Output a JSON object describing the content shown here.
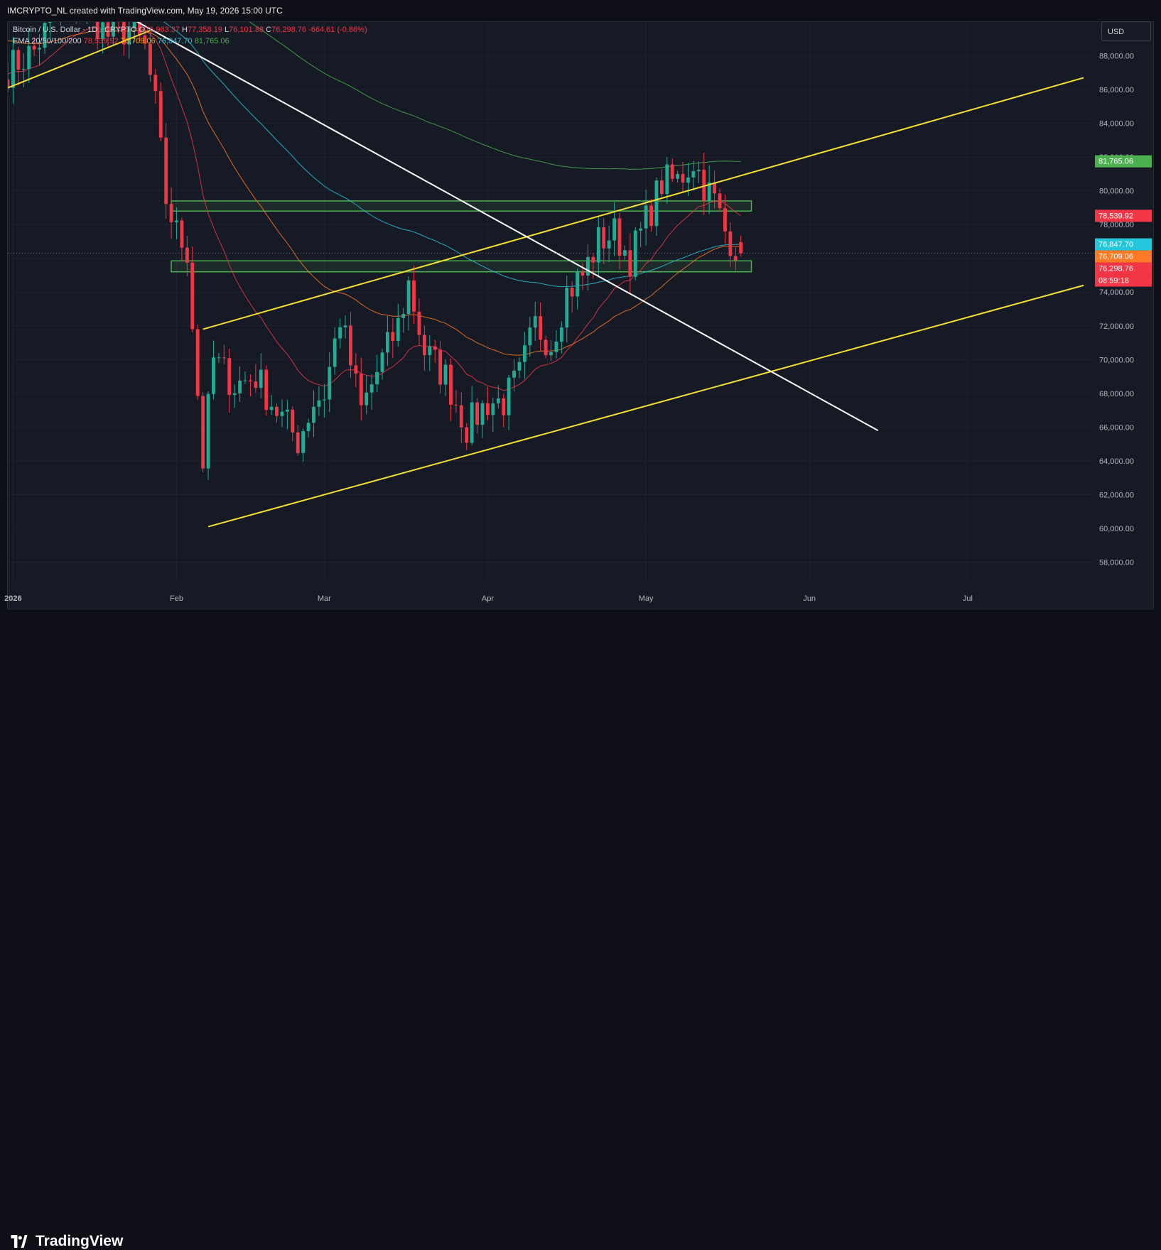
{
  "header": {
    "attribution": "IMCRYPTO_NL created with TradingView.com, May 19, 2026 15:00 UTC"
  },
  "legend": {
    "symbol": "Bitcoin / U.S. Dollar · 1D · CRYPTO",
    "o_label": "O",
    "o": "76,963.37",
    "h_label": "H",
    "h": "77,358.19",
    "l_label": "L",
    "l": "76,101.88",
    "c_label": "C",
    "c": "76,298.76",
    "change": "-664.61 (-0.86%)",
    "ema_label": "EMA 20/50/100/200",
    "ema20": "78,539.92",
    "ema50": "76,709.06",
    "ema100": "76,847.70",
    "ema200": "81,765.06"
  },
  "currency_button": "USD",
  "brand": "TradingView",
  "colors": {
    "up": "#22ab94",
    "down": "#f23645",
    "ema20": "#f23645",
    "ema50": "#ff7a26",
    "ema100": "#26c6da",
    "ema200": "#4caf50",
    "trend": "#f5e02f",
    "zone": "#4caf50"
  },
  "chart_data": {
    "type": "candlestick",
    "interval": "1D",
    "ylim": [
      56800,
      90000
    ],
    "xlim": [
      "2025-12-31",
      "2026-07-25"
    ],
    "x_ticks": [
      "2026",
      "Feb",
      "Mar",
      "Apr",
      "May",
      "Jun",
      "Jul"
    ],
    "x_tick_dates": [
      "2026-01-01",
      "2026-02-01",
      "2026-03-01",
      "2026-04-01",
      "2026-05-01",
      "2026-06-01",
      "2026-07-01"
    ],
    "y_ticks": [
      58000,
      60000,
      62000,
      64000,
      66000,
      68000,
      70000,
      72000,
      74000,
      76000,
      78000,
      80000,
      82000,
      84000,
      86000,
      88000
    ],
    "y_tick_labels": [
      "58,000.00",
      "60,000.00",
      "62,000.00",
      "64,000.00",
      "66,000.00",
      "68,000.00",
      "70,000.00",
      "72,000.00",
      "74,000.00",
      "76,000.00",
      "78,000.00",
      "80,000.00",
      "82,000.00",
      "84,000.00",
      "86,000.00",
      "88,000.00"
    ],
    "close_anchors": [
      [
        "2025-12-31",
        87200
      ],
      [
        "2026-01-05",
        88300
      ],
      [
        "2026-01-09",
        90500
      ],
      [
        "2026-01-13",
        91500
      ],
      [
        "2026-01-19",
        89200
      ],
      [
        "2026-01-23",
        89600
      ],
      [
        "2026-01-26",
        88400
      ],
      [
        "2026-01-28",
        85000
      ],
      [
        "2026-01-30",
        79500
      ],
      [
        "2026-02-01",
        77500
      ],
      [
        "2026-02-03",
        76500
      ],
      [
        "2026-02-05",
        68000
      ],
      [
        "2026-02-06",
        64000
      ],
      [
        "2026-02-08",
        70000
      ],
      [
        "2026-02-12",
        68500
      ],
      [
        "2026-02-16",
        69000
      ],
      [
        "2026-02-20",
        67000
      ],
      [
        "2026-02-24",
        65200
      ],
      [
        "2026-02-27",
        67500
      ],
      [
        "2026-03-01",
        68000
      ],
      [
        "2026-03-04",
        72500
      ],
      [
        "2026-03-08",
        67000
      ],
      [
        "2026-03-12",
        70000
      ],
      [
        "2026-03-15",
        72000
      ],
      [
        "2026-03-17",
        74500
      ],
      [
        "2026-03-20",
        70500
      ],
      [
        "2026-03-24",
        69000
      ],
      [
        "2026-03-28",
        66000
      ],
      [
        "2026-04-01",
        67500
      ],
      [
        "2026-04-04",
        67500
      ],
      [
        "2026-04-07",
        69000
      ],
      [
        "2026-04-10",
        72000
      ],
      [
        "2026-04-13",
        71000
      ],
      [
        "2026-04-16",
        74000
      ],
      [
        "2026-04-19",
        75000
      ],
      [
        "2026-04-22",
        77000
      ],
      [
        "2026-04-25",
        77500
      ],
      [
        "2026-04-28",
        76000
      ],
      [
        "2026-05-01",
        78200
      ],
      [
        "2026-05-04",
        80500
      ],
      [
        "2026-05-07",
        80600
      ],
      [
        "2026-05-10",
        81800
      ],
      [
        "2026-05-12",
        80400
      ],
      [
        "2026-05-14",
        79400
      ],
      [
        "2026-05-16",
        77600
      ],
      [
        "2026-05-19",
        76298.76
      ]
    ],
    "last_candle": {
      "date": "2026-05-19",
      "open": 76963.37,
      "high": 77358.19,
      "low": 76101.88,
      "close": 76298.76
    },
    "emas": [
      {
        "name": "EMA 20",
        "period": 20,
        "last": 78539.92
      },
      {
        "name": "EMA 50",
        "period": 50,
        "last": 76709.06
      },
      {
        "name": "EMA 100",
        "period": 100,
        "last": 76847.7
      },
      {
        "name": "EMA 200",
        "period": 200,
        "last": 81765.06
      }
    ],
    "trendlines": [
      {
        "name": "upper-channel-line",
        "color": "#f5e02f",
        "from": [
          "2026-02-06",
          71800
        ],
        "to": [
          "2026-07-23",
          86700
        ]
      },
      {
        "name": "lower-channel-line",
        "color": "#f5e02f",
        "from": [
          "2026-02-07",
          60100
        ],
        "to": [
          "2026-07-23",
          74400
        ]
      },
      {
        "name": "old-support-line",
        "color": "#f5e02f",
        "from": [
          "2025-12-31",
          86100
        ],
        "to": [
          "2026-01-27",
          89500
        ]
      },
      {
        "name": "descending-resistance-line",
        "color": "#ffffff",
        "from": [
          "2026-01-13",
          92000
        ],
        "to": [
          "2026-06-14",
          65800
        ]
      }
    ],
    "zones": [
      {
        "name": "upper-resistance-zone",
        "from": "2026-01-31",
        "to": "2026-05-21",
        "low": 78800,
        "high": 79400
      },
      {
        "name": "lower-support-zone",
        "from": "2026-01-31",
        "to": "2026-05-21",
        "low": 75200,
        "high": 75850
      }
    ],
    "price_labels": [
      {
        "label": "EMA 200",
        "value": "81,765.06",
        "color": "#4caf50"
      },
      {
        "label": "EMA 20",
        "value": "78,539.92",
        "color": "#f23645"
      },
      {
        "label": "EMA 100",
        "value": "76,847.70",
        "color": "#26c6da"
      },
      {
        "label": "EMA 50",
        "value": "76,709.06",
        "color": "#ff7a26"
      },
      {
        "label": "Last",
        "value": "76,298.76",
        "color": "#f23645"
      }
    ],
    "countdown": "08:59:18"
  }
}
